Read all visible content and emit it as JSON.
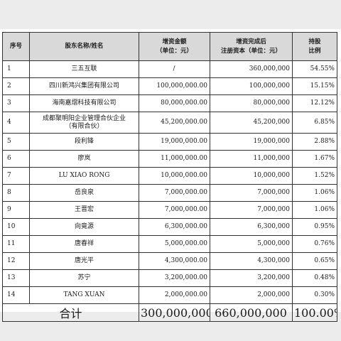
{
  "table": {
    "headers": {
      "index": "序号",
      "name": "股东名称/姓名",
      "capital_increase_line1": "增资金额",
      "capital_increase_line2": "（单位：元）",
      "registered_capital_line1": "增资完成后",
      "registered_capital_line2": "注册资本（单位：元）",
      "ratio_line1": "持股",
      "ratio_line2": "比例"
    },
    "rows": [
      {
        "index": "1",
        "name": "三五互联",
        "name2": "",
        "increase": "/",
        "capital": "360,000,000",
        "ratio": "54.55%"
      },
      {
        "index": "2",
        "name": "四川新鸿兴集团有限公司",
        "name2": "",
        "increase": "100,000,000.00",
        "capital": "100,000,000",
        "ratio": "15.15%"
      },
      {
        "index": "3",
        "name": "海南嘉熠科技有限公司",
        "name2": "",
        "increase": "80,000,000.00",
        "capital": "80,000,000",
        "ratio": "12.12%"
      },
      {
        "index": "4",
        "name": "成都聚明阳企业管理合伙企业",
        "name2": "（有限合伙）",
        "increase": "45,200,000.00",
        "capital": "45,200,000",
        "ratio": "6.85%"
      },
      {
        "index": "5",
        "name": "段利锋",
        "name2": "",
        "increase": "19,000,000.00",
        "capital": "19,000,000",
        "ratio": "2.88%"
      },
      {
        "index": "6",
        "name": "廖岚",
        "name2": "",
        "increase": "11,000,000.00",
        "capital": "11,000,000",
        "ratio": "1.67%"
      },
      {
        "index": "7",
        "name": "LU XIAO RONG",
        "name2": "",
        "increase": "10,000,000.00",
        "capital": "10,000,000",
        "ratio": "1.52%"
      },
      {
        "index": "8",
        "name": "岳良泉",
        "name2": "",
        "increase": "7,000,000.00",
        "capital": "7,000,000",
        "ratio": "1.06%"
      },
      {
        "index": "9",
        "name": "王晋宏",
        "name2": "",
        "increase": "7,000,000.00",
        "capital": "7,000,000",
        "ratio": "1.06%"
      },
      {
        "index": "10",
        "name": "向竟源",
        "name2": "",
        "increase": "6,300,000.00",
        "capital": "6,300,000",
        "ratio": "0.95%"
      },
      {
        "index": "11",
        "name": "唐春祥",
        "name2": "",
        "increase": "5,000,000.00",
        "capital": "5,000,000",
        "ratio": "0.76%"
      },
      {
        "index": "12",
        "name": "唐光平",
        "name2": "",
        "increase": "4,300,000.00",
        "capital": "4,300,000",
        "ratio": "0.65%"
      },
      {
        "index": "13",
        "name": "苏宁",
        "name2": "",
        "increase": "3,200,000.00",
        "capital": "3,200,000",
        "ratio": "0.48%"
      },
      {
        "index": "14",
        "name": "TANG XUAN",
        "name2": "",
        "increase": "2,000,000.00",
        "capital": "2,000,000",
        "ratio": "0.30%"
      }
    ],
    "total": {
      "label": "合计",
      "increase": "300,000,000.00",
      "capital": "660,000,000",
      "ratio": "100.00%"
    }
  }
}
